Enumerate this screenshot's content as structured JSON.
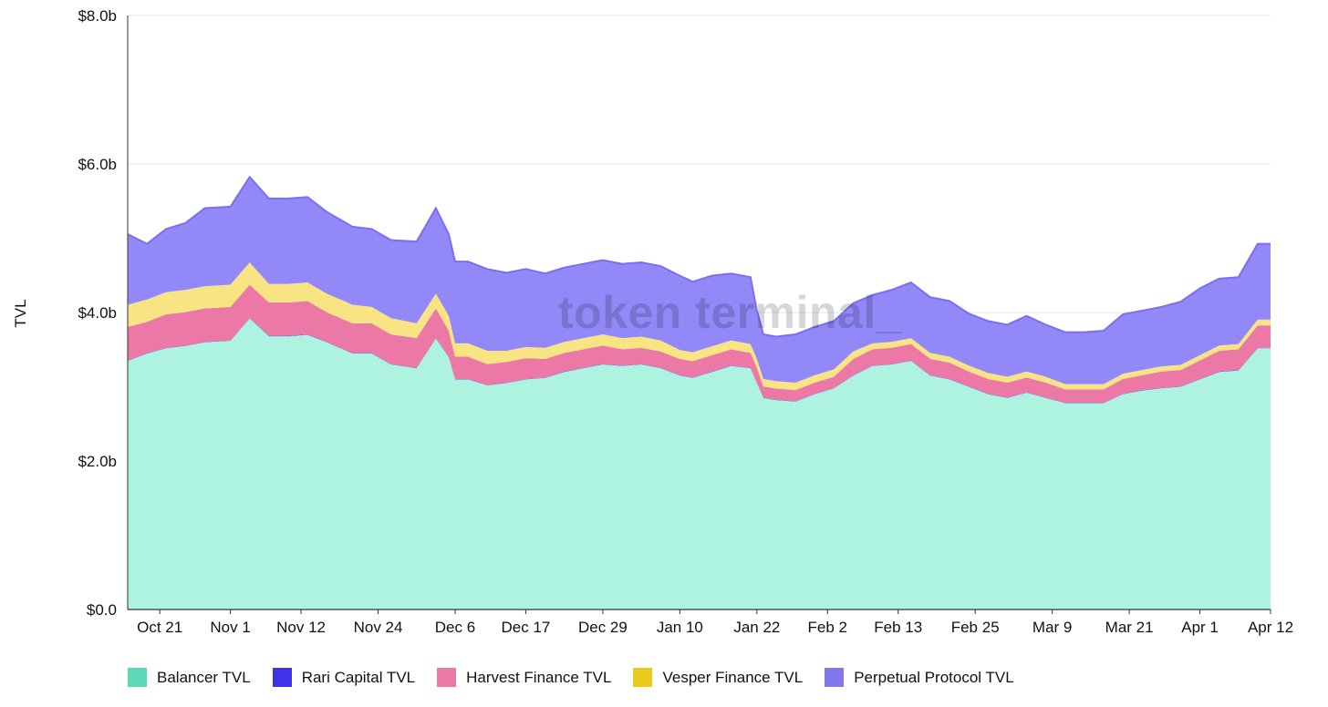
{
  "chart_data": {
    "type": "area",
    "stacked": true,
    "title": "",
    "xlabel": "",
    "ylabel": "TVL",
    "ylim": [
      0,
      8.0
    ],
    "y_ticks": [
      {
        "value": 0,
        "label": "$0.0"
      },
      {
        "value": 2.0,
        "label": "$2.0b"
      },
      {
        "value": 4.0,
        "label": "$4.0b"
      },
      {
        "value": 6.0,
        "label": "$6.0b"
      },
      {
        "value": 8.0,
        "label": "$8.0b"
      }
    ],
    "x_range": [
      0,
      178
    ],
    "x_ticks": [
      {
        "value": 5,
        "label": "Oct 21"
      },
      {
        "value": 16,
        "label": "Nov 1"
      },
      {
        "value": 27,
        "label": "Nov 12"
      },
      {
        "value": 39,
        "label": "Nov 24"
      },
      {
        "value": 51,
        "label": "Dec 6"
      },
      {
        "value": 62,
        "label": "Dec 17"
      },
      {
        "value": 74,
        "label": "Dec 29"
      },
      {
        "value": 86,
        "label": "Jan 10"
      },
      {
        "value": 98,
        "label": "Jan 22"
      },
      {
        "value": 109,
        "label": "Feb 2"
      },
      {
        "value": 120,
        "label": "Feb 13"
      },
      {
        "value": 132,
        "label": "Feb 25"
      },
      {
        "value": 144,
        "label": "Mar 9"
      },
      {
        "value": 156,
        "label": "Mar 21"
      },
      {
        "value": 167,
        "label": "Apr 1"
      },
      {
        "value": 178,
        "label": "Apr 12"
      }
    ],
    "grid": true,
    "legend_position": "bottom-left",
    "x": [
      0,
      3,
      6,
      9,
      12,
      16,
      19,
      22,
      25,
      28,
      31,
      35,
      38,
      41,
      45,
      48,
      50,
      51,
      53,
      56,
      59,
      62,
      65,
      68,
      71,
      74,
      77,
      80,
      83,
      86,
      88,
      91,
      94,
      97,
      98,
      99,
      101,
      104,
      107,
      110,
      113,
      116,
      119,
      122,
      125,
      128,
      131,
      134,
      137,
      140,
      143,
      146,
      149,
      152,
      155,
      158,
      161,
      164,
      167,
      170,
      173,
      176,
      178
    ],
    "series": [
      {
        "name": "Balancer TVL",
        "color": "#aef2e0",
        "values": [
          3.35,
          3.45,
          3.52,
          3.55,
          3.6,
          3.62,
          3.92,
          3.68,
          3.68,
          3.7,
          3.6,
          3.45,
          3.45,
          3.3,
          3.25,
          3.65,
          3.4,
          3.1,
          3.1,
          3.02,
          3.05,
          3.1,
          3.12,
          3.2,
          3.25,
          3.3,
          3.28,
          3.3,
          3.25,
          3.15,
          3.12,
          3.2,
          3.28,
          3.25,
          3.05,
          2.85,
          2.82,
          2.8,
          2.9,
          2.98,
          3.15,
          3.28,
          3.3,
          3.35,
          3.15,
          3.1,
          3.0,
          2.9,
          2.85,
          2.92,
          2.85,
          2.78,
          2.78,
          2.78,
          2.9,
          2.95,
          2.98,
          3.0,
          3.1,
          3.2,
          3.22,
          3.52,
          3.52
        ]
      },
      {
        "name": "Rari Capital TVL",
        "color": "#3e33e6",
        "values": [
          0.005,
          0.005,
          0.005,
          0.005,
          0.005,
          0.005,
          0.005,
          0.005,
          0.005,
          0.005,
          0.005,
          0.005,
          0.005,
          0.005,
          0.005,
          0.005,
          0.005,
          0.005,
          0.005,
          0.005,
          0.005,
          0.005,
          0.005,
          0.005,
          0.005,
          0.005,
          0.005,
          0.005,
          0.005,
          0.005,
          0.005,
          0.005,
          0.005,
          0.005,
          0.005,
          0.005,
          0.005,
          0.005,
          0.005,
          0.005,
          0.005,
          0.005,
          0.005,
          0.005,
          0.005,
          0.005,
          0.005,
          0.005,
          0.005,
          0.005,
          0.005,
          0.005,
          0.005,
          0.005,
          0.005,
          0.005,
          0.005,
          0.005,
          0.005,
          0.005,
          0.005,
          0.005,
          0.005
        ]
      },
      {
        "name": "Harvest Finance TVL",
        "color": "#ec78a6",
        "values": [
          0.45,
          0.42,
          0.45,
          0.45,
          0.45,
          0.45,
          0.45,
          0.45,
          0.45,
          0.45,
          0.4,
          0.4,
          0.4,
          0.4,
          0.4,
          0.4,
          0.35,
          0.3,
          0.3,
          0.28,
          0.28,
          0.28,
          0.25,
          0.25,
          0.25,
          0.25,
          0.22,
          0.22,
          0.22,
          0.22,
          0.22,
          0.22,
          0.22,
          0.2,
          0.2,
          0.15,
          0.15,
          0.15,
          0.15,
          0.15,
          0.22,
          0.22,
          0.22,
          0.22,
          0.22,
          0.22,
          0.2,
          0.2,
          0.2,
          0.2,
          0.2,
          0.18,
          0.18,
          0.18,
          0.2,
          0.2,
          0.22,
          0.22,
          0.25,
          0.28,
          0.28,
          0.3,
          0.3
        ]
      },
      {
        "name": "Vesper Finance TVL",
        "color": "#f9e483",
        "values": [
          0.3,
          0.3,
          0.3,
          0.3,
          0.3,
          0.3,
          0.3,
          0.25,
          0.25,
          0.25,
          0.25,
          0.25,
          0.22,
          0.22,
          0.2,
          0.2,
          0.2,
          0.18,
          0.18,
          0.18,
          0.15,
          0.15,
          0.15,
          0.15,
          0.15,
          0.15,
          0.15,
          0.15,
          0.15,
          0.12,
          0.12,
          0.12,
          0.12,
          0.12,
          0.12,
          0.1,
          0.1,
          0.1,
          0.1,
          0.1,
          0.1,
          0.08,
          0.08,
          0.08,
          0.08,
          0.08,
          0.08,
          0.08,
          0.08,
          0.08,
          0.08,
          0.07,
          0.07,
          0.07,
          0.07,
          0.07,
          0.07,
          0.07,
          0.07,
          0.07,
          0.07,
          0.08,
          0.08
        ]
      },
      {
        "name": "Perpetual Protocol TVL",
        "color": "#9288f8",
        "values": [
          0.95,
          0.75,
          0.85,
          0.9,
          1.05,
          1.05,
          1.15,
          1.15,
          1.15,
          1.15,
          1.1,
          1.05,
          1.05,
          1.05,
          1.1,
          1.15,
          1.1,
          1.1,
          1.1,
          1.1,
          1.05,
          1.05,
          1.0,
          1.0,
          1.0,
          1.0,
          1.0,
          1.0,
          1.0,
          1.0,
          0.95,
          0.95,
          0.9,
          0.9,
          0.65,
          0.6,
          0.6,
          0.65,
          0.65,
          0.65,
          0.65,
          0.65,
          0.7,
          0.75,
          0.75,
          0.75,
          0.7,
          0.7,
          0.7,
          0.75,
          0.7,
          0.7,
          0.7,
          0.72,
          0.8,
          0.8,
          0.8,
          0.85,
          0.9,
          0.9,
          0.9,
          1.02,
          1.02
        ]
      }
    ],
    "watermark": "token terminal_"
  }
}
